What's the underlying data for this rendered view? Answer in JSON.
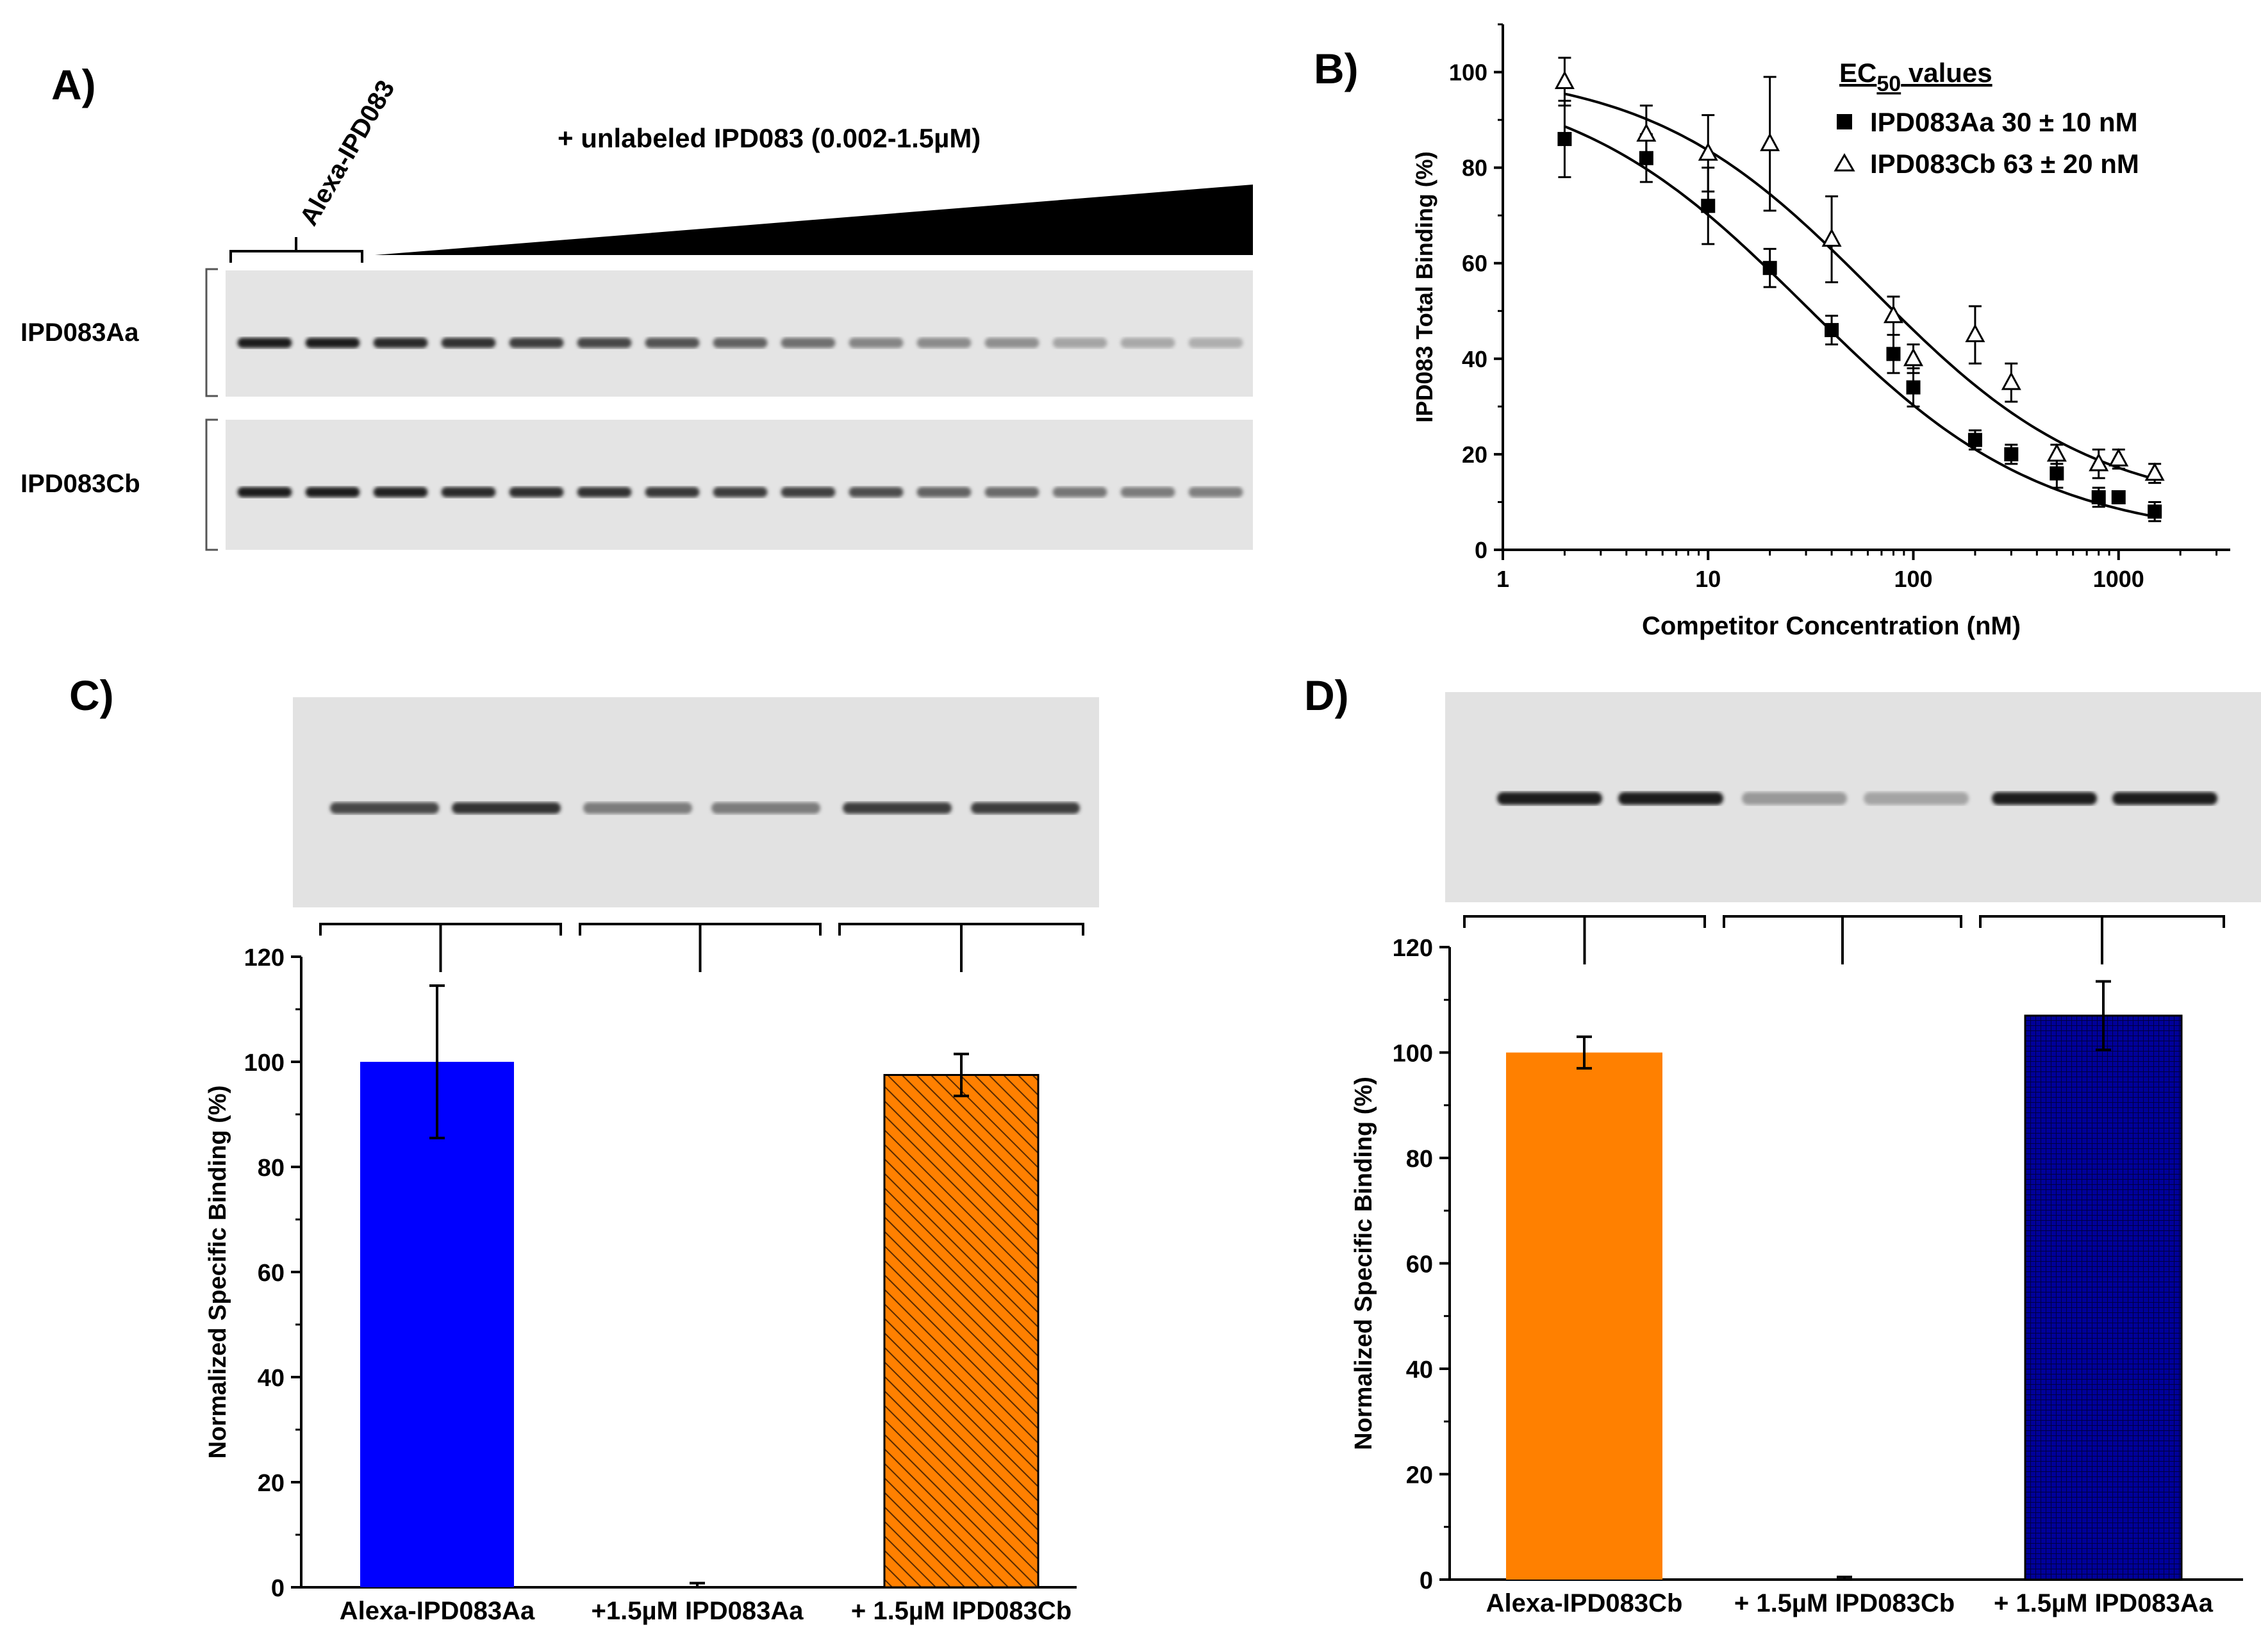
{
  "panels": {
    "a": {
      "letter": "A)",
      "alexa_label": "Alexa-IPD083",
      "gradient_label": "+ unlabeled IPD083 (0.002-1.5µM)",
      "row1_label": "IPD083Aa",
      "row2_label": "IPD083Cb",
      "row1_band_intensity": [
        0.95,
        0.95,
        0.9,
        0.85,
        0.8,
        0.75,
        0.7,
        0.62,
        0.55,
        0.45,
        0.42,
        0.4,
        0.3,
        0.28,
        0.25
      ],
      "row2_band_intensity": [
        0.95,
        0.95,
        0.92,
        0.9,
        0.88,
        0.85,
        0.82,
        0.8,
        0.78,
        0.72,
        0.62,
        0.58,
        0.52,
        0.5,
        0.48
      ]
    },
    "c": {
      "letter": "C)",
      "band_intensity": [
        0.75,
        0.85,
        0.5,
        0.5,
        0.8,
        0.8
      ]
    },
    "d": {
      "letter": "D)",
      "band_intensity": [
        0.97,
        0.97,
        0.35,
        0.3,
        0.97,
        0.97
      ]
    }
  },
  "chart_data": [
    {
      "id": "B",
      "letter": "B)",
      "type": "scatter",
      "xscale": "log",
      "xlim": [
        1,
        3500
      ],
      "ylim": [
        0,
        110
      ],
      "xticks": [
        1,
        10,
        100,
        1000
      ],
      "xtick_labels": [
        "1",
        "10",
        "100",
        "1000"
      ],
      "yticks": [
        0,
        20,
        40,
        60,
        80,
        100
      ],
      "ytick_labels": [
        "0",
        "20",
        "40",
        "60",
        "80",
        "100"
      ],
      "xlabel": "Competitor Concentration (nM)",
      "ylabel": "IPD083 Total Binding (%)",
      "legend_title": "EC",
      "legend_title_sub": "50",
      "legend_title_rest": " values",
      "series": [
        {
          "name": "IPD083Aa",
          "legend": "IPD083Aa  30 ± 10 nM",
          "marker": "square",
          "x": [
            2,
            5,
            10,
            20,
            40,
            80,
            100,
            200,
            300,
            500,
            800,
            1000,
            1500
          ],
          "y": [
            86,
            82,
            72,
            59,
            46,
            41,
            34,
            23,
            20,
            16,
            11,
            11,
            8
          ],
          "err": [
            8,
            5,
            8,
            4,
            3,
            4,
            4,
            2,
            2,
            3,
            2,
            1,
            2
          ],
          "fit": {
            "top": 100,
            "bottom": 2,
            "ec50": 30,
            "hill": 0.75
          }
        },
        {
          "name": "IPD083Cb",
          "legend": "IPD083Cb  63 ± 20 nM",
          "marker": "triangle",
          "x": [
            2,
            5,
            10,
            20,
            40,
            80,
            100,
            200,
            300,
            500,
            800,
            1000,
            1500
          ],
          "y": [
            98,
            87,
            83,
            85,
            65,
            49,
            40,
            45,
            35,
            20,
            18,
            19,
            16
          ],
          "err": [
            5,
            6,
            8,
            14,
            9,
            4,
            3,
            6,
            4,
            2,
            3,
            2,
            2
          ],
          "fit": {
            "top": 101,
            "bottom": 8,
            "ec50": 63,
            "hill": 0.8
          }
        }
      ]
    },
    {
      "id": "C",
      "type": "bar",
      "ylabel": "Normalized Specific Binding (%)",
      "ylim": [
        0,
        120
      ],
      "yticks": [
        0,
        20,
        40,
        60,
        80,
        100,
        120
      ],
      "ytick_labels": [
        "0",
        "20",
        "40",
        "60",
        "80",
        "100",
        "120"
      ],
      "categories": [
        "Alexa-IPD083Aa",
        "+1.5µM IPD083Aa",
        "+ 1.5µM IPD083Cb"
      ],
      "values": [
        100,
        0,
        97.5
      ],
      "err": [
        14.5,
        0.8,
        4
      ],
      "colors": [
        "#0000ff",
        "#ffffff",
        "#ff8000"
      ],
      "patterns": [
        "solid",
        "none",
        "hatch"
      ]
    },
    {
      "id": "D",
      "type": "bar",
      "ylabel": "Normalized Specific Binding (%)",
      "ylim": [
        0,
        120
      ],
      "yticks": [
        0,
        20,
        40,
        60,
        80,
        100,
        120
      ],
      "ytick_labels": [
        "0",
        "20",
        "40",
        "60",
        "80",
        "100",
        "120"
      ],
      "categories": [
        "Alexa-IPD083Cb",
        "+ 1.5µM IPD083Cb",
        "+ 1.5µM IPD083Aa"
      ],
      "values": [
        100,
        0,
        107
      ],
      "err": [
        3,
        0.5,
        6.5
      ],
      "colors": [
        "#ff8000",
        "#ffffff",
        "#00008b"
      ],
      "patterns": [
        "solid",
        "none",
        "grid"
      ]
    }
  ]
}
